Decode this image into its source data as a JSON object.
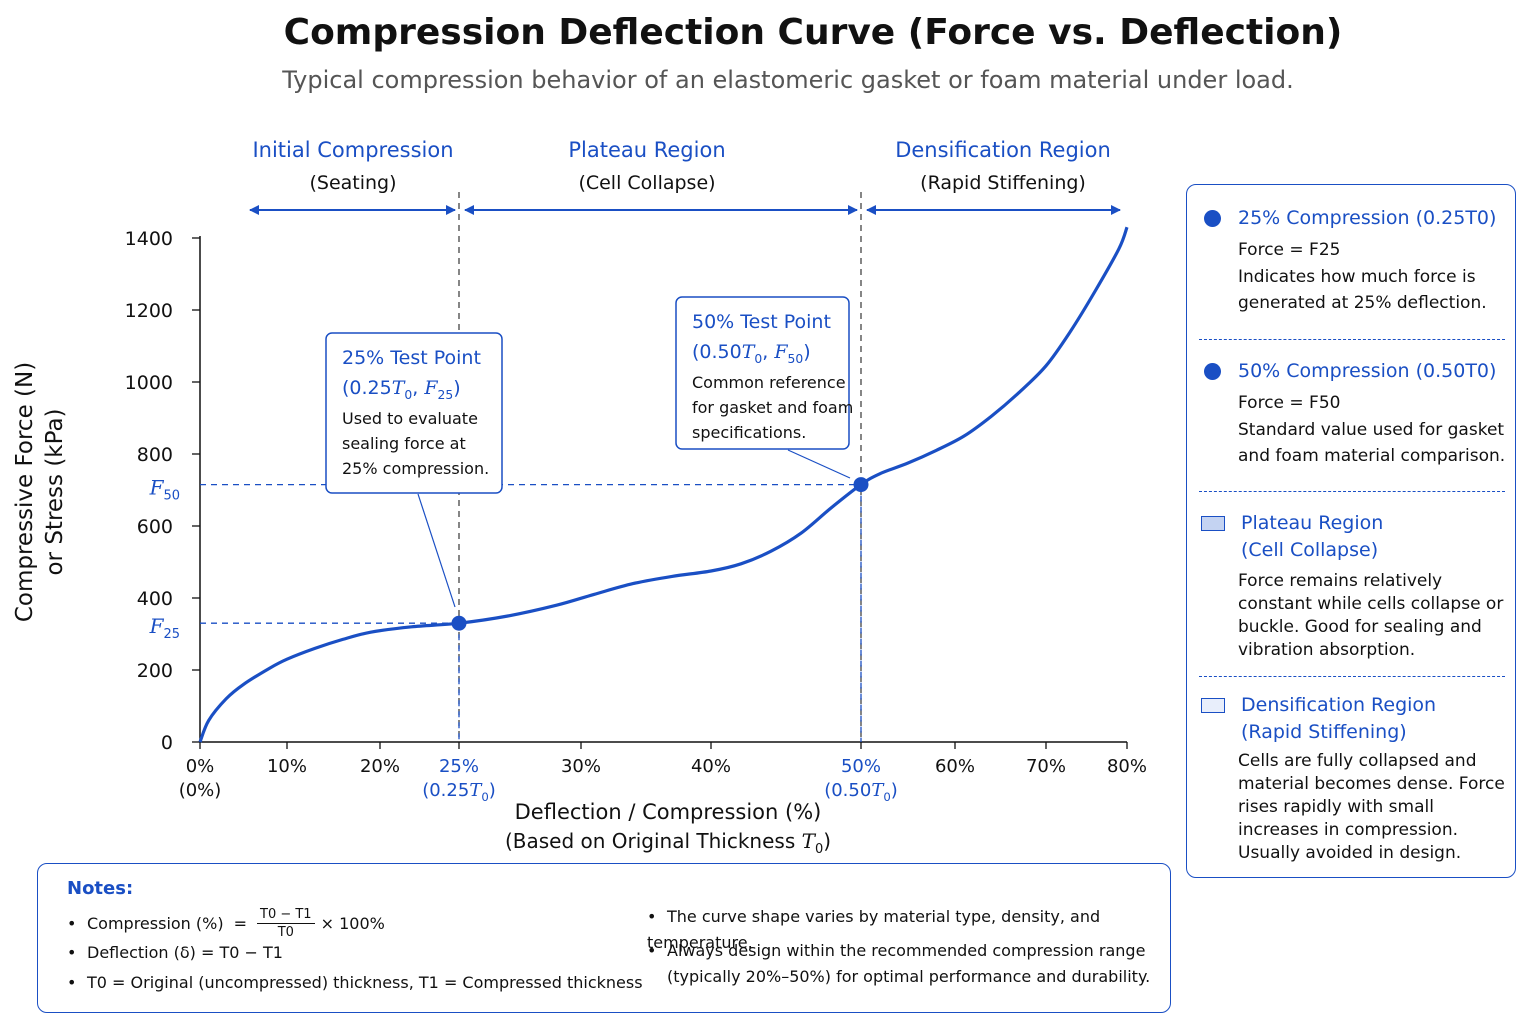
{
  "title": "Compression Deflection Curve (Force vs. Deflection)",
  "subtitle": "Typical compression behavior of an elastomeric gasket or foam material under load.",
  "colors": {
    "accent": "#1a4fc4",
    "text": "#111111",
    "muted": "#555555",
    "dashed_black": "#444444"
  },
  "chart_data": {
    "type": "line",
    "title": "Compression Deflection Curve (Force vs. Deflection)",
    "xlabel": "Deflection / Compression (%)",
    "xlabel_sub": "(Based on Original Thickness T0)",
    "ylabel": "Compressive Force (N)",
    "ylabel_sub": "or Stress (kPa)",
    "x_ticks": [
      {
        "value": 0,
        "label": "0%",
        "sub": "(0%)",
        "highlight": false
      },
      {
        "value": 10,
        "label": "10%",
        "sub": "",
        "highlight": false
      },
      {
        "value": 20,
        "label": "20%",
        "sub": "",
        "highlight": false
      },
      {
        "value": 25,
        "label": "25%",
        "sub": "(0.25T0)",
        "highlight": true
      },
      {
        "value": 30,
        "label": "30%",
        "sub": "",
        "highlight": false
      },
      {
        "value": 40,
        "label": "40%",
        "sub": "",
        "highlight": false
      },
      {
        "value": 50,
        "label": "50%",
        "sub": "(0.50T0)",
        "highlight": true
      },
      {
        "value": 60,
        "label": "60%",
        "sub": "",
        "highlight": false
      },
      {
        "value": 70,
        "label": "70%",
        "sub": "",
        "highlight": false
      },
      {
        "value": 80,
        "label": "80%",
        "sub": "",
        "highlight": false
      }
    ],
    "y_ticks": [
      0,
      200,
      400,
      600,
      800,
      1000,
      1200,
      1400
    ],
    "y_markers": [
      {
        "label": "F",
        "sub": "25",
        "value": 330
      },
      {
        "label": "F",
        "sub": "50",
        "value": 715
      }
    ],
    "xlim": [
      0,
      80
    ],
    "ylim": [
      0,
      1400
    ],
    "grid": false,
    "series": [
      {
        "x": [
          0,
          1,
          3,
          5,
          8,
          10,
          13,
          16,
          19,
          22,
          25,
          27,
          29,
          31,
          34,
          37,
          40,
          42,
          44,
          46,
          48,
          50,
          52,
          55,
          58,
          61,
          64,
          67,
          70,
          73,
          76,
          79,
          80
        ],
        "y": [
          0,
          60,
          120,
          160,
          205,
          230,
          260,
          285,
          305,
          320,
          330,
          350,
          380,
          410,
          440,
          460,
          475,
          495,
          530,
          580,
          650,
          715,
          745,
          775,
          810,
          850,
          905,
          970,
          1045,
          1140,
          1250,
          1370,
          1430
        ]
      }
    ],
    "points": [
      {
        "x": 25,
        "y": 330,
        "name": "25% Test Point"
      },
      {
        "x": 50,
        "y": 715,
        "name": "50% Test Point"
      }
    ],
    "regions": [
      {
        "title": "Initial Compression",
        "subtitle": "(Seating)",
        "x_from": 0,
        "x_to": 25
      },
      {
        "title": "Plateau Region",
        "subtitle": "(Cell Collapse)",
        "x_from": 25,
        "x_to": 50
      },
      {
        "title": "Densification Region",
        "subtitle": "(Rapid Stiffening)",
        "x_from": 50,
        "x_to": 80
      }
    ],
    "annotations": [
      {
        "title_line1": "25% Test Point",
        "title_line2": "(0.25T0, F25)",
        "text": [
          "Used to evaluate",
          "sealing force at",
          "25% compression."
        ]
      },
      {
        "title_line1": "50% Test Point",
        "title_line2": "(0.50T0, F50)",
        "text": [
          "Common reference",
          "for gasket and foam",
          "specifications."
        ]
      }
    ]
  },
  "legend": {
    "item1": {
      "title": "25% Compression (0.25T0)",
      "force": "Force = F25",
      "desc": "Indicates how much force is generated at 25% deflection."
    },
    "item2": {
      "title": "50% Compression (0.50T0)",
      "force": "Force = F50",
      "desc": "Standard value used for gasket and foam material comparison."
    },
    "item3": {
      "title_line1": "Plateau Region",
      "title_line2": "(Cell Collapse)",
      "desc": "Force remains relatively constant while cells collapse or buckle. Good for sealing and vibration absorption."
    },
    "item4": {
      "title_line1": "Densification Region",
      "title_line2": "(Rapid Stiffening)",
      "desc": "Cells are fully collapsed and material becomes dense. Force rises rapidly with small increases in compression. Usually avoided in design."
    }
  },
  "notes": {
    "title": "Notes:",
    "compression_label": "Compression (%)",
    "compression_numerator": "T0 − T1",
    "compression_denominator": "T0",
    "compression_tail": "× 100%",
    "deflection": "Deflection (δ) = T0 − T1",
    "definitions": "T0 = Original (uncompressed) thickness, T1 = Compressed thickness",
    "curve_shape": "The curve shape varies by material type, density, and temperature.",
    "design_line1": "Always design within the recommended compression range",
    "design_line2": "(typically 20%–50%) for optimal performance and durability."
  }
}
